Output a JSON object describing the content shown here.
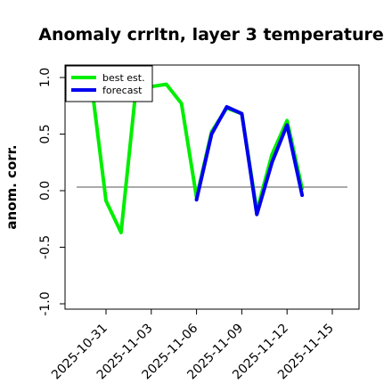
{
  "chart_data": {
    "type": "line",
    "title": "Anomaly crrltn, layer 3 temperature",
    "xlabel": "",
    "ylabel": "anom. corr.",
    "ylim": [
      -1.0,
      1.0
    ],
    "yticks": [
      "-1.0",
      "-0.5",
      "0.0",
      "0.5",
      "1.0"
    ],
    "xtick_labels": [
      "2025-10-31",
      "2025-11-03",
      "2025-11-06",
      "2025-11-09",
      "2025-11-12",
      "2025-11-15"
    ],
    "xtick_colors": [
      "#000000",
      "#000000",
      "#228b22",
      "#000000",
      "#000000",
      "#000000"
    ],
    "reference_line_y": 0.0,
    "legend_position": "top-left",
    "series": [
      {
        "name": "best est.",
        "color": "#00ee00",
        "x": [
          "2025-10-30",
          "2025-10-31",
          "2025-11-01",
          "2025-11-02",
          "2025-11-03",
          "2025-11-04",
          "2025-11-05",
          "2025-11-06",
          "2025-11-07",
          "2025-11-08",
          "2025-11-09",
          "2025-11-10",
          "2025-11-11",
          "2025-11-12",
          "2025-11-13"
        ],
        "values": [
          0.98,
          -0.09,
          -0.37,
          0.92,
          0.92,
          0.94,
          0.77,
          -0.06,
          0.52,
          0.73,
          0.68,
          -0.18,
          0.32,
          0.62,
          0.02
        ]
      },
      {
        "name": "forecast",
        "color": "#0000ee",
        "x": [
          "2025-11-06",
          "2025-11-07",
          "2025-11-08",
          "2025-11-09",
          "2025-11-10",
          "2025-11-11",
          "2025-11-12",
          "2025-11-13"
        ],
        "values": [
          -0.08,
          0.5,
          0.74,
          0.68,
          -0.21,
          0.25,
          0.58,
          -0.04
        ]
      }
    ]
  }
}
